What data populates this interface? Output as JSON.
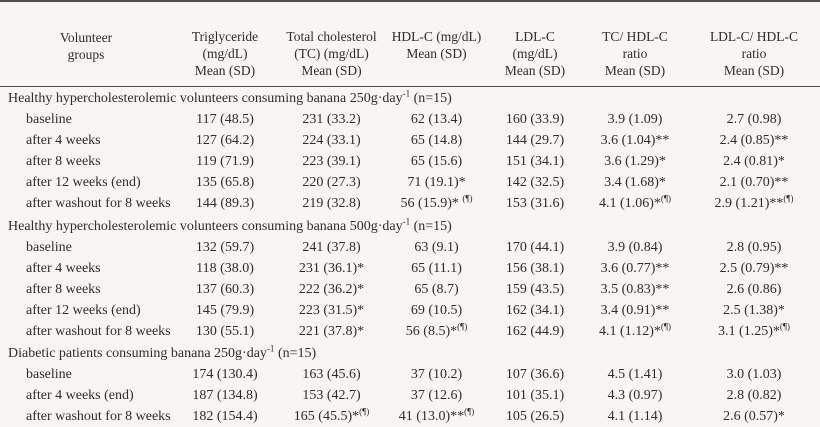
{
  "colors": {
    "background": "#f7f6f4",
    "text": "#2e2d2b",
    "rule": "#4f4f4f"
  },
  "table": {
    "columns": [
      {
        "key": "volunteer-groups",
        "label": "Volunteer\ngroups"
      },
      {
        "key": "triglyceride",
        "label": "Triglyceride\n(mg/dL)\nMean (SD)"
      },
      {
        "key": "total-cholesterol",
        "label": "Total cholesterol\n(TC) (mg/dL)\nMean (SD)"
      },
      {
        "key": "hdl-c",
        "label": "HDL-C (mg/dL)\nMean (SD)"
      },
      {
        "key": "ldl-c",
        "label": "LDL-C\n(mg/dL)\nMean (SD)"
      },
      {
        "key": "tc-hdl-ratio",
        "label": "TC/ HDL-C\nratio\nMean (SD)"
      },
      {
        "key": "ldl-hdl-ratio",
        "label": "LDL-C/ HDL-C\nratio\nMean (SD)"
      }
    ],
    "sections": [
      {
        "title": "Healthy hypercholesterolemic volunteers consuming banana 250g·day^-1^ (n=15)",
        "rows": [
          {
            "label": "baseline",
            "values": [
              "117 (48.5)",
              "231 (33.2)",
              "62 (13.4)",
              "160 (33.9)",
              "3.9 (1.09)",
              "2.7 (0.98)"
            ]
          },
          {
            "label": "after 4 weeks",
            "values": [
              "127 (64.2)",
              "224 (33.1)",
              "65 (14.8)",
              "144 (29.7)",
              "3.6 (1.04)**",
              "2.4 (0.85)**"
            ]
          },
          {
            "label": "after 8 weeks",
            "values": [
              "119 (71.9)",
              "223 (39.1)",
              "65 (15.6)",
              "151 (34.1)",
              "3.6 (1.29)*",
              "2.4 (0.81)*"
            ]
          },
          {
            "label": "after 12 weeks (end)",
            "values": [
              "135 (65.8)",
              "220 (27.3)",
              "71 (19.1)*",
              "142 (32.5)",
              "3.4 (1.68)*",
              "2.1 (0.70)**"
            ]
          },
          {
            "label": "after washout for 8 weeks",
            "values": [
              "144 (89.3)",
              "219 (32.8)",
              "56 (15.9)* ^(¶)^",
              "153 (31.6)",
              "4.1 (1.06)*^(¶)^",
              "2.9 (1.21)**^(¶)^"
            ]
          }
        ]
      },
      {
        "title": "Healthy hypercholesterolemic volunteers consuming banana 500g·day^-1^ (n=15)",
        "rows": [
          {
            "label": "baseline",
            "values": [
              "132 (59.7)",
              "241 (37.8)",
              "63 (9.1)",
              "170 (44.1)",
              "3.9 (0.84)",
              "2.8 (0.95)"
            ]
          },
          {
            "label": "after 4 weeks",
            "values": [
              "118 (38.0)",
              "231 (36.1)*",
              "65 (11.1)",
              "156 (38.1)",
              "3.6 (0.77)**",
              "2.5 (0.79)**"
            ]
          },
          {
            "label": "after 8 weeks",
            "values": [
              "137 (60.3)",
              "222 (36.2)*",
              "65 (8.7)",
              "159 (43.5)",
              "3.5 (0.83)**",
              "2.6 (0.86)"
            ]
          },
          {
            "label": "after 12 weeks (end)",
            "values": [
              "145 (79.9)",
              "223 (31.5)*",
              "69 (10.5)",
              "162 (34.1)",
              "3.4 (0.91)**",
              "2.5 (1.38)*"
            ]
          },
          {
            "label": "after washout for 8 weeks",
            "values": [
              "130 (55.1)",
              "221 (37.8)*",
              "56 (8.5)*^(¶)^",
              "162 (44.9)",
              "4.1 (1.12)*^(¶)^",
              "3.1 (1.25)*^(¶)^"
            ]
          }
        ]
      },
      {
        "title": "Diabetic patients consuming banana 250g·day^-1^ (n=15)",
        "rows": [
          {
            "label": "baseline",
            "values": [
              "174 (130.4)",
              "163 (45.6)",
              "37 (10.2)",
              "107 (36.6)",
              "4.5 (1.41)",
              "3.0 (1.03)"
            ]
          },
          {
            "label": "after 4 weeks (end)",
            "values": [
              "187 (134.8)",
              "153 (42.7)",
              "37 (12.6)",
              "101 (35.1)",
              "4.3 (0.97)",
              "2.8 (0.82)"
            ]
          },
          {
            "label": "after washout for 8 weeks",
            "values": [
              "182 (154.4)",
              "165 (45.5)*^(¶)^",
              "41 (13.0)**^(¶)^",
              "105 (26.5)",
              "4.1 (1.14)",
              "2.6 (0.57)*"
            ]
          }
        ]
      }
    ]
  }
}
